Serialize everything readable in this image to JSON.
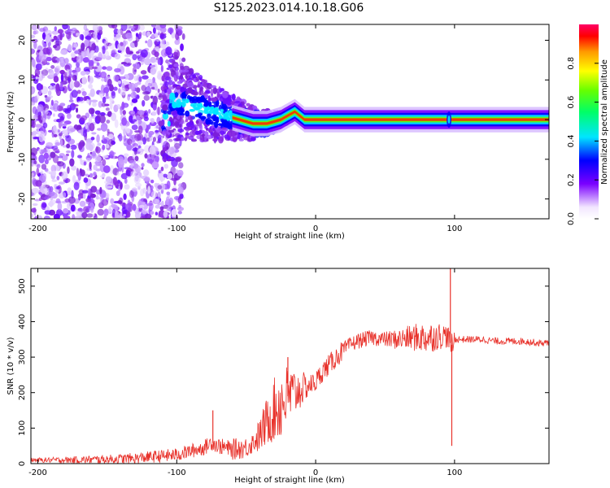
{
  "title": "S125.2023.014.10.18.G06",
  "chart_data": [
    {
      "type": "heatmap",
      "xlabel": "Height of straight line (km)",
      "ylabel": "Frequency (Hz)",
      "xlim": [
        -205,
        168
      ],
      "ylim": [
        -25,
        24
      ],
      "xticks": [
        -200,
        -100,
        0,
        100
      ],
      "xtick_labels": [
        "-200",
        "-100",
        "0",
        "100"
      ],
      "yticks": [
        -20,
        -10,
        0,
        10,
        20
      ],
      "ytick_labels": [
        "-20",
        "-10",
        "0",
        "10",
        "20"
      ],
      "ridge": [
        {
          "x": -105,
          "y": 5
        },
        {
          "x": -95,
          "y": 4
        },
        {
          "x": -85,
          "y": 3
        },
        {
          "x": -75,
          "y": 2
        },
        {
          "x": -65,
          "y": 1
        },
        {
          "x": -55,
          "y": 0
        },
        {
          "x": -45,
          "y": -1
        },
        {
          "x": -35,
          "y": -1
        },
        {
          "x": -25,
          "y": 0
        },
        {
          "x": -15,
          "y": 2
        },
        {
          "x": -8,
          "y": 0
        },
        {
          "x": 0,
          "y": 0
        },
        {
          "x": 50,
          "y": 0
        },
        {
          "x": 95,
          "y": 0
        },
        {
          "x": 168,
          "y": 0
        }
      ],
      "colorbar": {
        "label": "Normalized spectral amplitude",
        "range": [
          0,
          1
        ],
        "ticks": [
          0.0,
          0.2,
          0.4,
          0.6,
          0.8
        ],
        "tick_labels": [
          "0.0",
          "0.2",
          "0.4",
          "0.6",
          "0.8"
        ]
      }
    },
    {
      "type": "line",
      "xlabel": "Height of straight line (km)",
      "ylabel": "SNR (10 * v/v)",
      "xlim": [
        -205,
        168
      ],
      "ylim": [
        0,
        550
      ],
      "xticks": [
        -200,
        -100,
        0,
        100
      ],
      "xtick_labels": [
        "-200",
        "-100",
        "0",
        "100"
      ],
      "yticks": [
        0,
        100,
        200,
        300,
        400,
        500
      ],
      "ytick_labels": [
        "0",
        "100",
        "200",
        "300",
        "400",
        "500"
      ],
      "series": [
        {
          "name": "SNR",
          "color": "#e8312a",
          "x": [
            -205,
            -180,
            -150,
            -130,
            -115,
            -100,
            -90,
            -80,
            -75,
            -70,
            -60,
            -50,
            -45,
            -40,
            -35,
            -30,
            -25,
            -20,
            -15,
            -10,
            -5,
            0,
            5,
            10,
            15,
            20,
            25,
            30,
            35,
            40,
            50,
            60,
            70,
            80,
            90,
            95,
            97,
            99,
            100,
            110,
            120,
            130,
            140,
            150,
            160,
            168
          ],
          "y": [
            10,
            10,
            12,
            15,
            20,
            25,
            35,
            45,
            60,
            50,
            40,
            45,
            60,
            80,
            120,
            150,
            170,
            190,
            200,
            210,
            220,
            230,
            260,
            280,
            300,
            320,
            335,
            345,
            350,
            355,
            350,
            350,
            355,
            355,
            360,
            360,
            340,
            330,
            350,
            350,
            350,
            345,
            345,
            345,
            340,
            340
          ]
        }
      ],
      "spikes": [
        {
          "x": -74,
          "y": 150
        },
        {
          "x": -20,
          "y": 300
        },
        {
          "x": 97,
          "y": 550
        },
        {
          "x": 98,
          "y": 50
        }
      ]
    }
  ]
}
